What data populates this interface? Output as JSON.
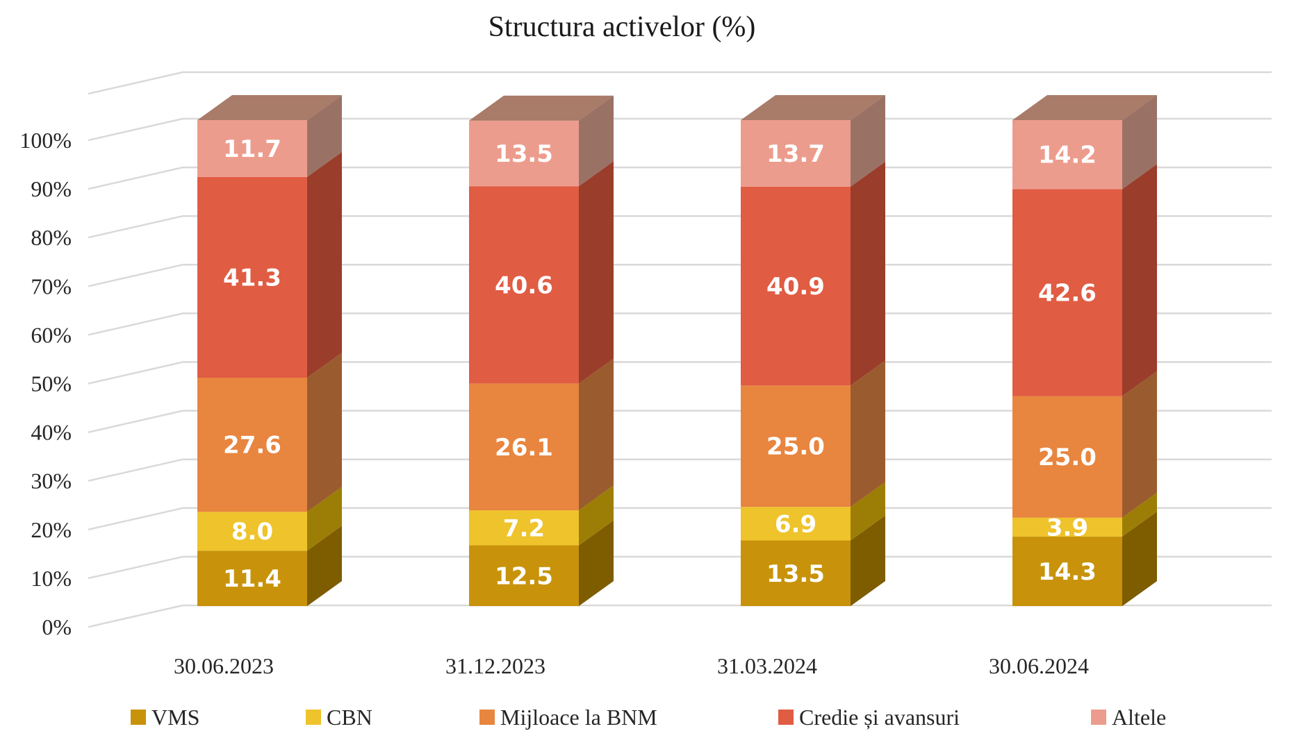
{
  "chart_data": {
    "type": "bar",
    "variant": "3d-stacked-100pct",
    "title": "Structura activelor (%)",
    "categories": [
      "30.06.2023",
      "31.12.2023",
      "31.03.2024",
      "30.06.2024"
    ],
    "series": [
      {
        "name": "VMS",
        "color": "#C8930B",
        "side_color": "#7E5C00",
        "values": [
          11.4,
          12.5,
          13.5,
          14.3
        ]
      },
      {
        "name": "CBN",
        "color": "#EEC32B",
        "side_color": "#9C7E06",
        "values": [
          8.0,
          7.2,
          6.9,
          3.9
        ]
      },
      {
        "name": "Mijloace la BNM",
        "color": "#E8853F",
        "side_color": "#9A5C2E",
        "values": [
          27.6,
          26.1,
          25.0,
          25.0
        ]
      },
      {
        "name": "Credie și avansuri",
        "color": "#E05C43",
        "side_color": "#9A3D2B",
        "values": [
          41.3,
          40.6,
          40.9,
          42.6
        ]
      },
      {
        "name": "Altele",
        "color": "#EC9C8D",
        "side_color": "#9A7265",
        "top_color": "#A97B69",
        "values": [
          11.7,
          13.5,
          13.7,
          14.2
        ]
      }
    ],
    "y_ticks": [
      "0%",
      "10%",
      "20%",
      "30%",
      "40%",
      "50%",
      "60%",
      "70%",
      "80%",
      "90%",
      "100%"
    ],
    "ylim": [
      0,
      100
    ],
    "value_decimals": 1,
    "grid": true,
    "gridline_color": "#D9D9D9",
    "background_color": "#FFFFFF",
    "value_label_color": "#FFFFFF",
    "legend_position": "bottom"
  }
}
